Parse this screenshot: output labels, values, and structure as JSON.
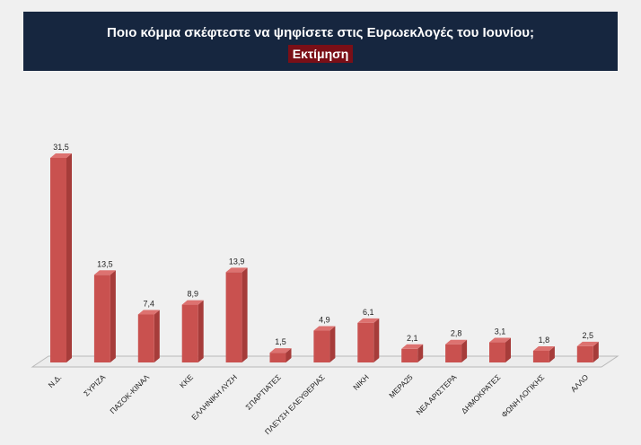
{
  "colors": {
    "title_background": "#16263f",
    "subtitle_background": "#7a0f17",
    "bar_front": "#c9514f",
    "bar_side": "#a63c3a",
    "bar_top": "#dd7270",
    "page_background": "#f0f0f0"
  },
  "chart_data": {
    "type": "bar",
    "title": "Ποιο κόμμα σκέφτεστε να ψηφίσετε στις Ευρωεκλογές του Ιουνίου;",
    "subtitle": "Εκτίμηση",
    "categories": [
      "Ν.Δ.",
      "ΣΥΡΙΖΑ",
      "ΠΑΣΟΚ-ΚΙΝΑΛ",
      "ΚΚΕ",
      "ΕΛΛΗΝΙΚΗ ΛΥΣΗ",
      "ΣΠΑΡΤΙΑΤΕΣ",
      "ΠΛΕΥΣΗ ΕΛΕΥΘΕΡΙΑΣ",
      "ΝΙΚΗ",
      "ΜΕΡΑ25",
      "ΝΕΑ ΑΡΙΣΤΕΡΑ",
      "ΔΗΜΟΚΡΑΤΕΣ",
      "ΦΩΝΗ ΛΟΓΙΚΗΣ",
      "ΑΛΛΟ"
    ],
    "values": [
      31.5,
      13.5,
      7.4,
      8.9,
      13.9,
      1.5,
      4.9,
      6.1,
      2.1,
      2.8,
      3.1,
      1.8,
      2.5
    ],
    "value_labels": [
      "31,5",
      "13,5",
      "7,4",
      "8,9",
      "13,9",
      "1,5",
      "4,9",
      "6,1",
      "2,1",
      "2,8",
      "3,1",
      "1,8",
      "2,5"
    ],
    "xlabel": "",
    "ylabel": "",
    "ylim": [
      0,
      31.5
    ],
    "grid": false,
    "style": "3d-columns"
  }
}
